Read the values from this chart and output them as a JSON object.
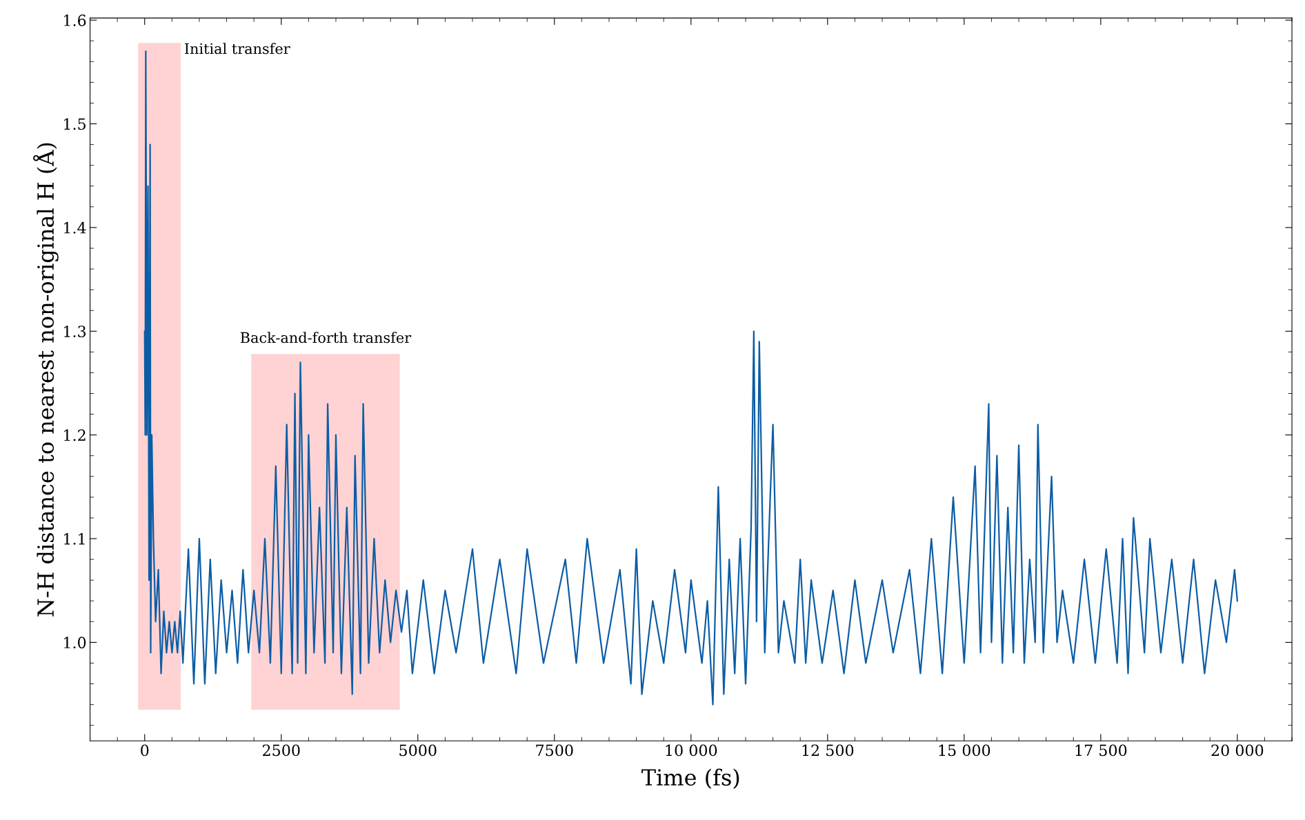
{
  "chart_data": {
    "type": "line",
    "xlabel": "Time (fs)",
    "ylabel": "N-H distance to nearest non-original H (Å)",
    "x": [
      0,
      10,
      20,
      40,
      60,
      80,
      100,
      110,
      130,
      160,
      200,
      250,
      300,
      350,
      400,
      450,
      500,
      550,
      600,
      650,
      700,
      800,
      900,
      1000,
      1100,
      1200,
      1300,
      1400,
      1500,
      1600,
      1700,
      1800,
      1900,
      2000,
      2100,
      2200,
      2300,
      2400,
      2500,
      2600,
      2700,
      2750,
      2800,
      2850,
      2950,
      3000,
      3100,
      3200,
      3300,
      3350,
      3450,
      3500,
      3600,
      3700,
      3800,
      3850,
      3950,
      4000,
      4100,
      4200,
      4300,
      4400,
      4500,
      4600,
      4700,
      4800,
      4900,
      5100,
      5300,
      5500,
      5700,
      6000,
      6200,
      6500,
      6800,
      7000,
      7300,
      7700,
      7900,
      8100,
      8400,
      8700,
      8900,
      9000,
      9100,
      9300,
      9500,
      9700,
      9900,
      10000,
      10200,
      10300,
      10400,
      10500,
      10600,
      10700,
      10800,
      10900,
      11000,
      11100,
      11150,
      11200,
      11250,
      11350,
      11450,
      11500,
      11600,
      11700,
      11900,
      12000,
      12100,
      12200,
      12400,
      12600,
      12800,
      13000,
      13200,
      13500,
      13700,
      14000,
      14200,
      14400,
      14600,
      14800,
      15000,
      15200,
      15300,
      15450,
      15500,
      15600,
      15700,
      15800,
      15900,
      16000,
      16100,
      16200,
      16300,
      16350,
      16450,
      16600,
      16700,
      16800,
      17000,
      17200,
      17400,
      17600,
      17800,
      17900,
      18000,
      18100,
      18300,
      18400,
      18600,
      18800,
      19000,
      19200,
      19400,
      19600,
      19800,
      19950,
      20000
    ],
    "series": [
      {
        "color": "#0c5da5",
        "values": [
          1.3,
          1.2,
          1.57,
          1.2,
          1.44,
          1.06,
          1.48,
          0.99,
          1.2,
          1.1,
          1.02,
          1.07,
          0.97,
          1.03,
          0.99,
          1.02,
          0.99,
          1.02,
          0.99,
          1.03,
          0.98,
          1.09,
          0.96,
          1.1,
          0.96,
          1.08,
          0.97,
          1.06,
          0.99,
          1.05,
          0.98,
          1.07,
          0.99,
          1.05,
          0.99,
          1.1,
          0.98,
          1.17,
          0.97,
          1.21,
          0.97,
          1.24,
          0.98,
          1.27,
          0.97,
          1.2,
          0.99,
          1.13,
          0.98,
          1.23,
          0.99,
          1.2,
          0.97,
          1.13,
          0.95,
          1.18,
          0.97,
          1.23,
          0.98,
          1.1,
          0.99,
          1.06,
          1.0,
          1.05,
          1.01,
          1.05,
          0.97,
          1.06,
          0.97,
          1.05,
          0.99,
          1.09,
          0.98,
          1.08,
          0.97,
          1.09,
          0.98,
          1.08,
          0.98,
          1.1,
          0.98,
          1.07,
          0.96,
          1.09,
          0.95,
          1.04,
          0.98,
          1.07,
          0.99,
          1.06,
          0.98,
          1.04,
          0.94,
          1.15,
          0.95,
          1.08,
          0.97,
          1.1,
          0.96,
          1.11,
          1.3,
          1.02,
          1.29,
          0.99,
          1.14,
          1.21,
          0.99,
          1.04,
          0.98,
          1.08,
          0.98,
          1.06,
          0.98,
          1.05,
          0.97,
          1.06,
          0.98,
          1.06,
          0.99,
          1.07,
          0.97,
          1.1,
          0.97,
          1.14,
          0.98,
          1.17,
          0.99,
          1.23,
          1.0,
          1.18,
          0.98,
          1.13,
          0.99,
          1.19,
          0.98,
          1.08,
          1.0,
          1.21,
          0.99,
          1.16,
          1.0,
          1.05,
          0.98,
          1.08,
          0.98,
          1.09,
          0.98,
          1.1,
          0.97,
          1.12,
          0.99,
          1.1,
          0.99,
          1.08,
          0.98,
          1.08,
          0.97,
          1.06,
          1.0,
          1.07,
          1.04
        ]
      }
    ],
    "xlim": [
      -1000,
      21000
    ],
    "ylim": [
      0.905,
      1.602
    ],
    "xticks": [
      0,
      2500,
      5000,
      7500,
      {
        "value": 10000,
        "label": "10 000"
      },
      {
        "value": 12500,
        "label": "12 500"
      },
      {
        "value": 15000,
        "label": "15 000"
      },
      {
        "value": 17500,
        "label": "17 500"
      },
      {
        "value": 20000,
        "label": "20 000"
      }
    ],
    "yticks": [
      {
        "value": 1.0,
        "label": "1.0"
      },
      1.1,
      1.2,
      1.3,
      1.4,
      1.5,
      1.6
    ],
    "bands": [
      {
        "axis": "x",
        "from": -120,
        "to": 660,
        "label": "Initial transfer",
        "color": "#ff8080"
      },
      {
        "axis": "x",
        "from": 1950,
        "to": 4670,
        "label": "Back-and-forth transfer",
        "color": "#ff8080"
      }
    ],
    "grid": false,
    "legend": false,
    "line_style": "solid",
    "marker": "none"
  }
}
